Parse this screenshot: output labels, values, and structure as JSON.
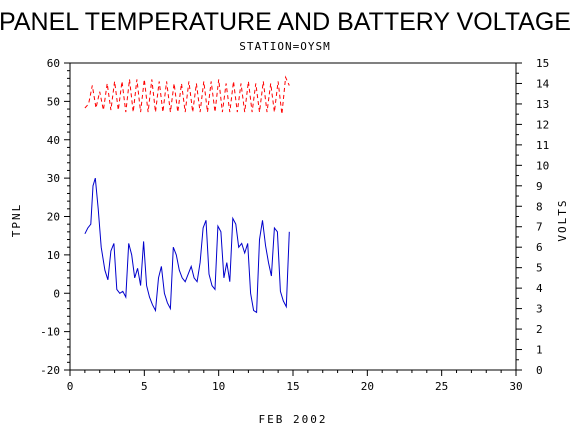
{
  "chart_data": {
    "type": "line",
    "title": "PANEL TEMPERATURE AND BATTERY VOLTAGE",
    "subtitle": "STATION=OYSM",
    "xlabel": "FEB 2002",
    "ylabel": "TPNL",
    "ylabel_right": "VOLTS",
    "xlim": [
      0,
      30
    ],
    "ylim": [
      -20,
      60
    ],
    "ylim_right": [
      0,
      15
    ],
    "x_ticks": [
      0,
      5,
      10,
      15,
      20,
      25,
      30
    ],
    "y_ticks": [
      -20,
      -10,
      0,
      10,
      20,
      30,
      40,
      50,
      60
    ],
    "y_right_ticks": [
      0,
      1,
      2,
      3,
      4,
      5,
      6,
      7,
      8,
      9,
      10,
      11,
      12,
      13,
      14,
      15
    ],
    "grid": false,
    "series": [
      {
        "axis": "left",
        "color": "#0000cc",
        "style": "solid",
        "points": [
          [
            1.0,
            15.5
          ],
          [
            1.2,
            17.0
          ],
          [
            1.4,
            18.0
          ],
          [
            1.55,
            28.0
          ],
          [
            1.7,
            30.0
          ],
          [
            1.9,
            22.0
          ],
          [
            2.1,
            12.0
          ],
          [
            2.35,
            6.0
          ],
          [
            2.55,
            3.5
          ],
          [
            2.75,
            11.0
          ],
          [
            2.95,
            13.0
          ],
          [
            3.15,
            1.0
          ],
          [
            3.35,
            0.0
          ],
          [
            3.55,
            0.5
          ],
          [
            3.75,
            -1.0
          ],
          [
            3.95,
            13.0
          ],
          [
            4.15,
            10.0
          ],
          [
            4.35,
            4.0
          ],
          [
            4.55,
            6.5
          ],
          [
            4.75,
            2.0
          ],
          [
            4.95,
            13.5
          ],
          [
            5.15,
            2.0
          ],
          [
            5.35,
            -1.0
          ],
          [
            5.55,
            -3.0
          ],
          [
            5.75,
            -4.5
          ],
          [
            5.95,
            4.0
          ],
          [
            6.15,
            7.0
          ],
          [
            6.35,
            0.0
          ],
          [
            6.55,
            -2.5
          ],
          [
            6.75,
            -4.0
          ],
          [
            6.95,
            12.0
          ],
          [
            7.15,
            10.0
          ],
          [
            7.35,
            6.0
          ],
          [
            7.55,
            4.0
          ],
          [
            7.75,
            3.0
          ],
          [
            7.95,
            5.0
          ],
          [
            8.15,
            7.0
          ],
          [
            8.35,
            4.0
          ],
          [
            8.55,
            3.0
          ],
          [
            8.75,
            8.0
          ],
          [
            8.95,
            17.0
          ],
          [
            9.15,
            19.0
          ],
          [
            9.35,
            5.0
          ],
          [
            9.55,
            2.0
          ],
          [
            9.75,
            1.0
          ],
          [
            9.95,
            17.5
          ],
          [
            10.15,
            16.0
          ],
          [
            10.35,
            4.0
          ],
          [
            10.55,
            8.0
          ],
          [
            10.75,
            3.0
          ],
          [
            10.95,
            19.5
          ],
          [
            11.15,
            18.0
          ],
          [
            11.35,
            12.0
          ],
          [
            11.55,
            13.0
          ],
          [
            11.75,
            10.5
          ],
          [
            11.95,
            13.0
          ],
          [
            12.15,
            0.0
          ],
          [
            12.35,
            -4.5
          ],
          [
            12.55,
            -5.0
          ],
          [
            12.75,
            14.0
          ],
          [
            12.95,
            19.0
          ],
          [
            13.15,
            12.5
          ],
          [
            13.35,
            8.0
          ],
          [
            13.55,
            4.5
          ],
          [
            13.75,
            17.0
          ],
          [
            13.95,
            16.0
          ],
          [
            14.15,
            0.5
          ],
          [
            14.35,
            -2.0
          ],
          [
            14.55,
            -3.5
          ],
          [
            14.75,
            16.0
          ]
        ]
      },
      {
        "axis": "right",
        "color": "#ff0000",
        "style": "dashed",
        "points": [
          [
            1.0,
            12.8
          ],
          [
            1.25,
            13.0
          ],
          [
            1.5,
            13.9
          ],
          [
            1.75,
            12.8
          ],
          [
            2.0,
            13.6
          ],
          [
            2.25,
            12.7
          ],
          [
            2.5,
            14.0
          ],
          [
            2.75,
            12.7
          ],
          [
            3.0,
            14.1
          ],
          [
            3.25,
            12.7
          ],
          [
            3.5,
            14.1
          ],
          [
            3.75,
            12.6
          ],
          [
            4.0,
            14.2
          ],
          [
            4.25,
            12.6
          ],
          [
            4.5,
            14.2
          ],
          [
            4.75,
            12.6
          ],
          [
            5.0,
            14.2
          ],
          [
            5.25,
            12.6
          ],
          [
            5.5,
            14.2
          ],
          [
            5.75,
            12.6
          ],
          [
            6.0,
            14.1
          ],
          [
            6.25,
            12.6
          ],
          [
            6.5,
            14.1
          ],
          [
            6.75,
            12.6
          ],
          [
            7.0,
            14.0
          ],
          [
            7.25,
            12.6
          ],
          [
            7.5,
            14.0
          ],
          [
            7.75,
            12.6
          ],
          [
            8.0,
            14.1
          ],
          [
            8.25,
            12.6
          ],
          [
            8.5,
            14.0
          ],
          [
            8.75,
            12.6
          ],
          [
            9.0,
            14.1
          ],
          [
            9.25,
            12.6
          ],
          [
            9.5,
            14.1
          ],
          [
            9.75,
            12.6
          ],
          [
            10.0,
            14.2
          ],
          [
            10.25,
            12.6
          ],
          [
            10.5,
            14.0
          ],
          [
            10.75,
            12.6
          ],
          [
            11.0,
            14.1
          ],
          [
            11.25,
            12.6
          ],
          [
            11.5,
            14.0
          ],
          [
            11.75,
            12.6
          ],
          [
            12.0,
            14.1
          ],
          [
            12.25,
            12.6
          ],
          [
            12.5,
            14.0
          ],
          [
            12.75,
            12.6
          ],
          [
            13.0,
            14.1
          ],
          [
            13.25,
            12.6
          ],
          [
            13.5,
            14.0
          ],
          [
            13.75,
            12.6
          ],
          [
            14.0,
            14.1
          ],
          [
            14.25,
            12.5
          ],
          [
            14.5,
            14.3
          ],
          [
            14.75,
            13.9
          ]
        ]
      }
    ]
  }
}
